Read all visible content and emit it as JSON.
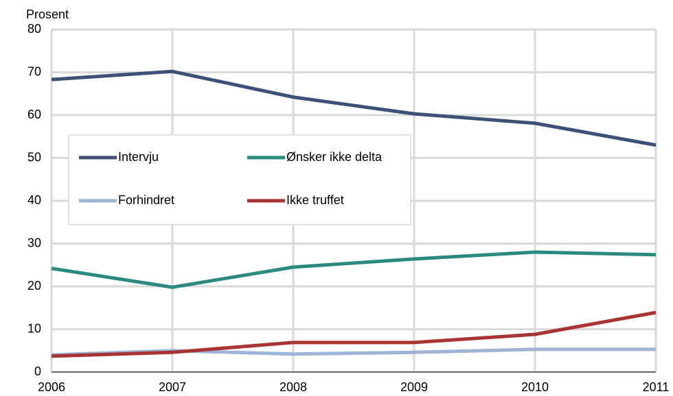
{
  "chart_data": {
    "type": "line",
    "y_label": "Prosent",
    "x": [
      2006,
      2007,
      2008,
      2009,
      2010,
      2011
    ],
    "xlim": [
      2006,
      2011
    ],
    "xticks": [
      2006,
      2007,
      2008,
      2009,
      2010,
      2011
    ],
    "ylim": [
      0,
      80
    ],
    "yticks": [
      0,
      10,
      20,
      30,
      40,
      50,
      60,
      70,
      80
    ],
    "grid": true,
    "legend": "left",
    "series": [
      {
        "name": "Intervju",
        "color": "#3c5078",
        "values": [
          68.3,
          70.2,
          64.2,
          60.3,
          58.1,
          53.0
        ]
      },
      {
        "name": "Ønsker ikke delta",
        "color": "#2a8a80",
        "values": [
          24.2,
          19.8,
          24.5,
          26.4,
          28.0,
          27.4
        ]
      },
      {
        "name": "Forhindret",
        "color": "#9fb3d4",
        "values": [
          4.0,
          5.0,
          4.2,
          4.6,
          5.3,
          5.3
        ]
      },
      {
        "name": "Ikke truffet",
        "color": "#a83434",
        "values": [
          3.7,
          4.6,
          6.9,
          6.9,
          8.8,
          13.9
        ]
      }
    ]
  }
}
